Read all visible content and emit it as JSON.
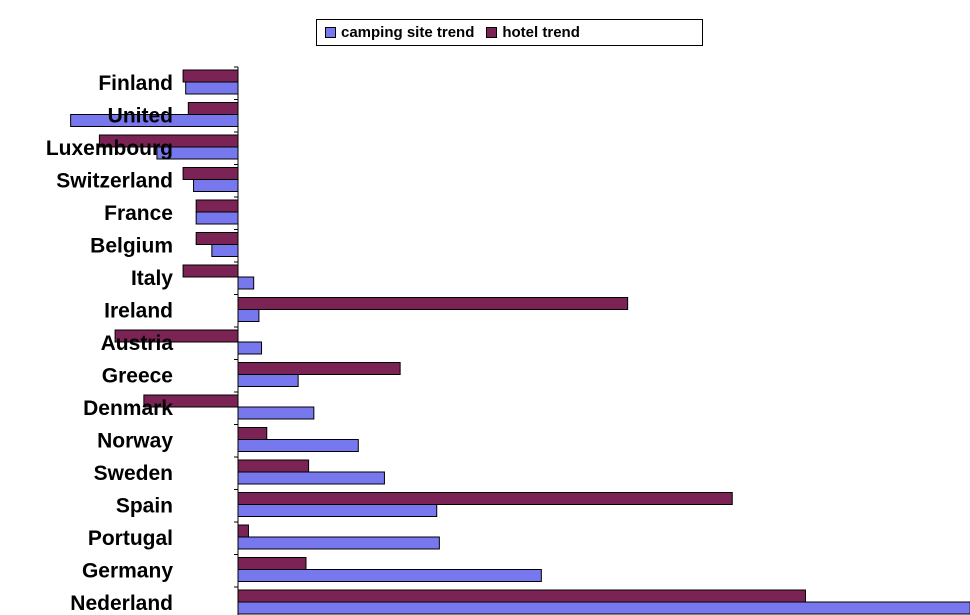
{
  "chart_data": {
    "type": "bar",
    "orientation": "horizontal",
    "categories": [
      "Finland",
      "United",
      "Luxembourg",
      "Switzerland",
      "France",
      "Belgium",
      "Italy",
      "Ireland",
      "Austria",
      "Greece",
      "Denmark",
      "Norway",
      "Sweden",
      "Spain",
      "Portugal",
      "Germany",
      "Nederland"
    ],
    "series": [
      {
        "name": "hotel trend",
        "color": "#7B2355",
        "values": [
          -10.5,
          -9.5,
          -26.5,
          -10.5,
          -8,
          -8,
          -10.5,
          74.5,
          -23.5,
          31,
          -18,
          5.5,
          13.5,
          94.5,
          2,
          13,
          108.5
        ]
      },
      {
        "name": "camping site trend",
        "color": "#7777EE",
        "values": [
          -10,
          -32,
          -15.5,
          -8.5,
          -8,
          -5,
          3,
          4,
          4.5,
          11.5,
          14.5,
          23,
          28,
          38,
          38.5,
          58,
          140
        ]
      }
    ],
    "legend_position": "top",
    "grid": false,
    "xlim": [
      -45,
      140
    ]
  }
}
